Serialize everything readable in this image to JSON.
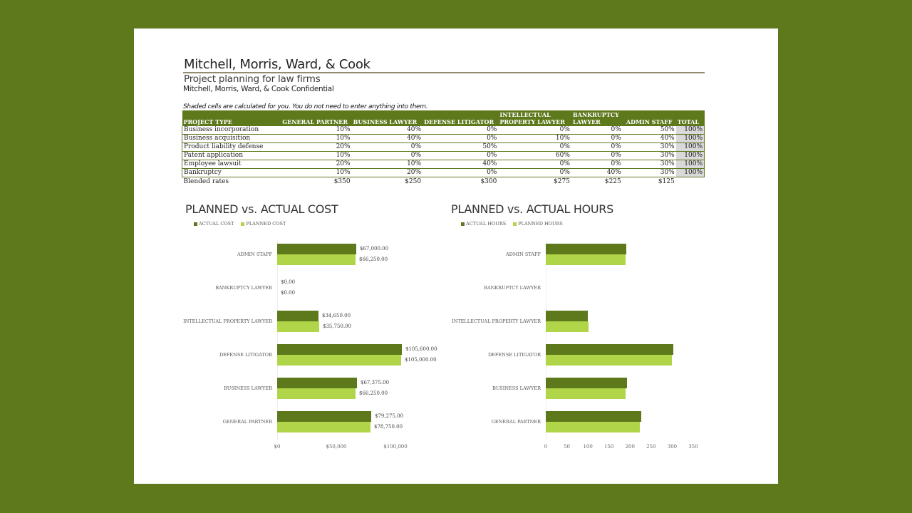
{
  "header": {
    "title": "Mitchell, Morris, Ward, & Cook",
    "subtitle": "Project planning for law firms",
    "confidential": "Mitchell, Morris, Ward, & Cook Confidential",
    "note": "Shaded cells are calculated for you. You do not need to enter anything into them."
  },
  "table": {
    "headers": {
      "project_type": "PROJECT TYPE",
      "general_partner": "GENERAL PARTNER",
      "business_lawyer": "BUSINESS LAWYER",
      "defense_litigator": "DEFENSE LITIGATOR",
      "ip_lawyer_1": "INTELLECTUAL",
      "ip_lawyer_2": "PROPERTY LAWYER",
      "bankruptcy_lawyer_1": "BANKRUPTCY",
      "bankruptcy_lawyer_2": "LAWYER",
      "admin_staff": "ADMIN STAFF",
      "total": "TOTAL"
    },
    "rows": [
      {
        "type": "Business incorporation",
        "gp": "10%",
        "bl": "40%",
        "dl": "0%",
        "ip": "0%",
        "bk": "0%",
        "as": "50%",
        "total": "100%"
      },
      {
        "type": "Business acquisition",
        "gp": "10%",
        "bl": "40%",
        "dl": "0%",
        "ip": "10%",
        "bk": "0%",
        "as": "40%",
        "total": "100%"
      },
      {
        "type": "Product liability defense",
        "gp": "20%",
        "bl": "0%",
        "dl": "50%",
        "ip": "0%",
        "bk": "0%",
        "as": "30%",
        "total": "100%"
      },
      {
        "type": "Patent application",
        "gp": "10%",
        "bl": "0%",
        "dl": "0%",
        "ip": "60%",
        "bk": "0%",
        "as": "30%",
        "total": "100%"
      },
      {
        "type": "Employee lawsuit",
        "gp": "20%",
        "bl": "10%",
        "dl": "40%",
        "ip": "0%",
        "bk": "0%",
        "as": "30%",
        "total": "100%"
      },
      {
        "type": "Bankruptcy",
        "gp": "10%",
        "bl": "20%",
        "dl": "0%",
        "ip": "0%",
        "bk": "40%",
        "as": "30%",
        "total": "100%"
      }
    ],
    "rates": {
      "label": "Blended rates",
      "gp": "$350",
      "bl": "$250",
      "dl": "$300",
      "ip": "$275",
      "bk": "$225",
      "as": "$125"
    }
  },
  "colors": {
    "background": "#5e781c",
    "actual": "#5e781c",
    "planned": "#b1d548",
    "total_shade": "#d9d9d9"
  },
  "chart_data": [
    {
      "type": "bar",
      "orientation": "horizontal",
      "title": "PLANNED vs. ACTUAL COST",
      "legend": [
        "ACTUAL COST",
        "PLANNED COST"
      ],
      "legend_position": "top-left",
      "categories": [
        "ADMIN STAFF",
        "BANKRUPTCY LAWYER",
        "INTELLECTUAL PROPERTY LAWYER",
        "DEFENSE LITIGATOR",
        "BUSINESS LAWYER",
        "GENERAL PARTNER"
      ],
      "series": [
        {
          "name": "ACTUAL COST",
          "values": [
            67000,
            0,
            34650,
            105600,
            67375,
            79275
          ],
          "labels": [
            "$67,000.00",
            "$0.00",
            "$34,650.00",
            "$105,600.00",
            "$67,375.00",
            "$79,275.00"
          ]
        },
        {
          "name": "PLANNED COST",
          "values": [
            66250,
            0,
            35750,
            105000,
            66250,
            78750
          ],
          "labels": [
            "$66,250.00",
            "$0.00",
            "$35,750.00",
            "$105,000.00",
            "$66,250.00",
            "$78,750.00"
          ]
        }
      ],
      "xticks": [
        "$0",
        "$50,000",
        "$100,000"
      ],
      "xlim": [
        0,
        120000
      ],
      "grid": false
    },
    {
      "type": "bar",
      "orientation": "horizontal",
      "title": "PLANNED vs. ACTUAL HOURS",
      "legend": [
        "ACTUAL HOURS",
        "PLANNED HOURS"
      ],
      "legend_position": "top-left",
      "categories": [
        "ADMIN STAFF",
        "BANKRUPTCY LAWYER",
        "INTELLECTUAL PROPERTY LAWYER",
        "DEFENSE LITIGATOR",
        "BUSINESS LAWYER",
        "GENERAL PARTNER"
      ],
      "series": [
        {
          "name": "ACTUAL HOURS",
          "values": [
            191,
            0,
            99,
            302,
            192,
            226
          ]
        },
        {
          "name": "PLANNED HOURS",
          "values": [
            189,
            0,
            102,
            300,
            189,
            224
          ]
        }
      ],
      "xticks": [
        "0",
        "50",
        "100",
        "150",
        "200",
        "250",
        "300",
        "350"
      ],
      "xlim": [
        0,
        350
      ],
      "grid": false
    }
  ]
}
